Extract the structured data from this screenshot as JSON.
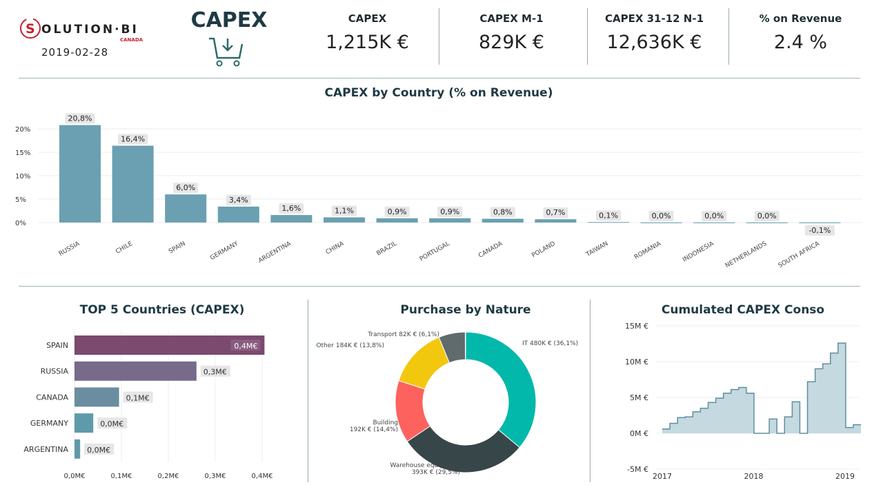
{
  "header": {
    "logo_text": "SOLUTION·BI",
    "logo_sub": "CANADA",
    "date": "2019-02-28",
    "page_title": "CAPEX",
    "page_icon": "cart-download-icon",
    "kpis": [
      {
        "label": "CAPEX",
        "value": "1,215K €"
      },
      {
        "label": "CAPEX M-1",
        "value": "829K €"
      },
      {
        "label": "CAPEX  31-12 N-1",
        "value": "12,636K €"
      },
      {
        "label": "% on Revenue",
        "value": "2.4 %"
      }
    ]
  },
  "colors": {
    "bar": "#6aa0b1",
    "title": "#1f3a44",
    "area": "#c4d9e0",
    "line": "#5e8e9c"
  },
  "chart_data": [
    {
      "type": "bar",
      "title": "CAPEX by Country (% on Revenue)",
      "categories": [
        "RUSSIA",
        "CHILE",
        "SPAIN",
        "GERMANY",
        "ARGENTINA",
        "CHINA",
        "BRAZIL",
        "PORTUGAL",
        "CANADA",
        "POLAND",
        "TAIWAN",
        "ROMANIA",
        "INDONESIA",
        "NETHERLANDS",
        "SOUTH AFRICA"
      ],
      "values": [
        20.8,
        16.4,
        6.0,
        3.4,
        1.6,
        1.1,
        0.9,
        0.9,
        0.8,
        0.7,
        0.1,
        0.0,
        0.0,
        0.0,
        -0.1
      ],
      "data_labels": [
        "20,8%",
        "16,4%",
        "6,0%",
        "3,4%",
        "1,6%",
        "1,1%",
        "0,9%",
        "0,9%",
        "0,8%",
        "0,7%",
        "0,1%",
        "0,0%",
        "0,0%",
        "0,0%",
        "-0,1%"
      ],
      "yticks": [
        "0%",
        "5%",
        "10%",
        "15%",
        "20%"
      ],
      "ylim": [
        0,
        22
      ],
      "grid": true
    },
    {
      "type": "bar",
      "orientation": "horizontal",
      "title": "TOP 5 Countries (CAPEX)",
      "categories": [
        "SPAIN",
        "RUSSIA",
        "CANADA",
        "GERMANY",
        "ARGENTINA"
      ],
      "values": [
        0.405,
        0.26,
        0.095,
        0.04,
        0.012
      ],
      "data_labels": [
        "0,4M€",
        "0,3M€",
        "0,1M€",
        "0,0M€",
        "0,0M€"
      ],
      "colors": [
        "#7b4a6e",
        "#776a8a",
        "#6a8ea0",
        "#5f9aaa",
        "#5f9aaa"
      ],
      "xticks": [
        "0,0M€",
        "0,1M€",
        "0,2M€",
        "0,3M€",
        "0,4M€"
      ],
      "xlim": [
        0,
        0.4
      ]
    },
    {
      "type": "pie",
      "donut": true,
      "title": "Purchase by Nature",
      "slices": [
        {
          "label": "IT 480K € (36,1%)",
          "value": 36.1,
          "color": "#01b8aa"
        },
        {
          "label": "Warehouse equipment 393K € (29,5%)",
          "value": 29.5,
          "color": "#374649"
        },
        {
          "label": "Building 192K € (14,4%)",
          "value": 14.4,
          "color": "#fd625e"
        },
        {
          "label": "Other 184K € (13,8%)",
          "value": 13.8,
          "color": "#f2c80f"
        },
        {
          "label": "Transport 82K € (6,1%)",
          "value": 6.1,
          "color": "#5f6b6d"
        }
      ]
    },
    {
      "type": "area",
      "step": true,
      "title": "Cumulated CAPEX Conso",
      "x": [
        "2017-01",
        "2017-02",
        "2017-03",
        "2017-04",
        "2017-05",
        "2017-06",
        "2017-07",
        "2017-08",
        "2017-09",
        "2017-10",
        "2017-11",
        "2017-12",
        "2018-01",
        "2018-02",
        "2018-03",
        "2018-04",
        "2018-05",
        "2018-06",
        "2018-07",
        "2018-08",
        "2018-09",
        "2018-10",
        "2018-11",
        "2018-12",
        "2019-01",
        "2019-02"
      ],
      "values": [
        0.6,
        1.4,
        2.2,
        2.3,
        3.0,
        3.5,
        4.3,
        4.9,
        5.6,
        6.1,
        6.4,
        5.6,
        0,
        0,
        2.0,
        0,
        2.3,
        4.4,
        0,
        7.2,
        9.0,
        9.7,
        11.2,
        12.6,
        0.8,
        1.2
      ],
      "yticks": [
        "-5M €",
        "0M €",
        "5M €",
        "10M €",
        "15M €"
      ],
      "ylim": [
        -5,
        15
      ],
      "xticks": [
        "2017",
        "2018",
        "2019"
      ],
      "grid": true
    }
  ]
}
